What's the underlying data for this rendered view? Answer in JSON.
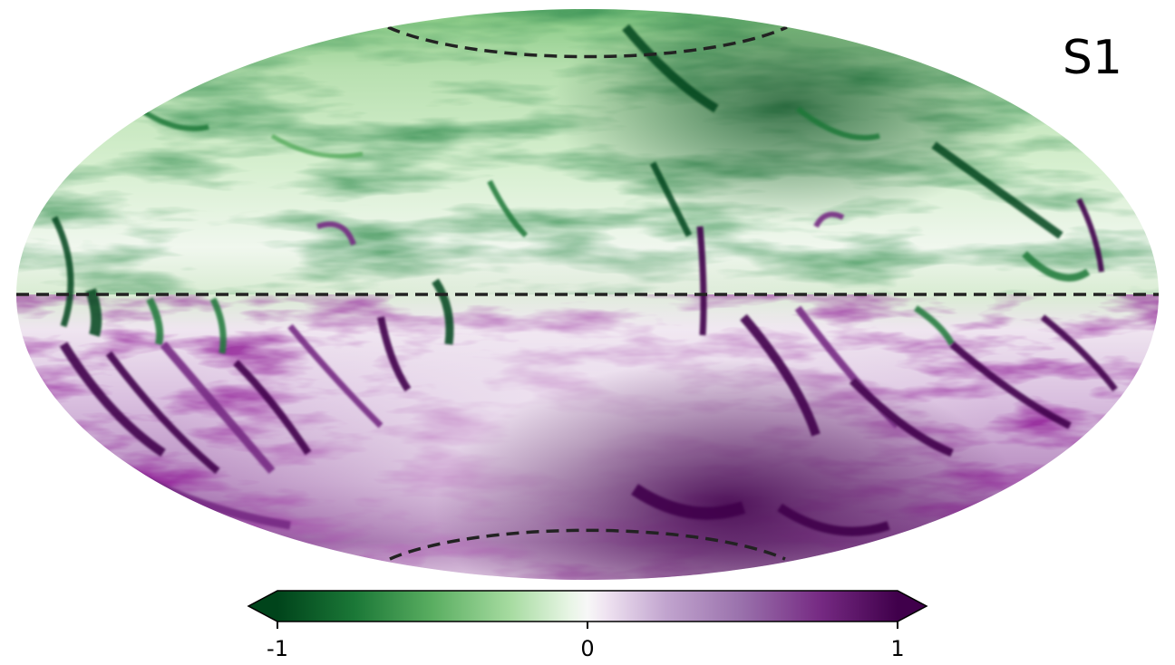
{
  "figure": {
    "panel_label": "S1",
    "projection": "mollweide",
    "background": "#ffffff",
    "overlay": {
      "equator_line": "dashed",
      "polar_boundaries": "dashed",
      "line_color": "#222222"
    }
  },
  "colorbar": {
    "colormap": "PRGn_r",
    "min": -1,
    "max": 1,
    "extend": "both",
    "ticks": [
      {
        "value": -1,
        "label": "-1"
      },
      {
        "value": 0,
        "label": "0"
      },
      {
        "value": 1,
        "label": "1"
      }
    ],
    "colors": {
      "low": "#00441b",
      "mid_low": "#5aae61",
      "center": "#f7f7f7",
      "mid_high": "#9970ab",
      "high": "#40004b"
    }
  }
}
